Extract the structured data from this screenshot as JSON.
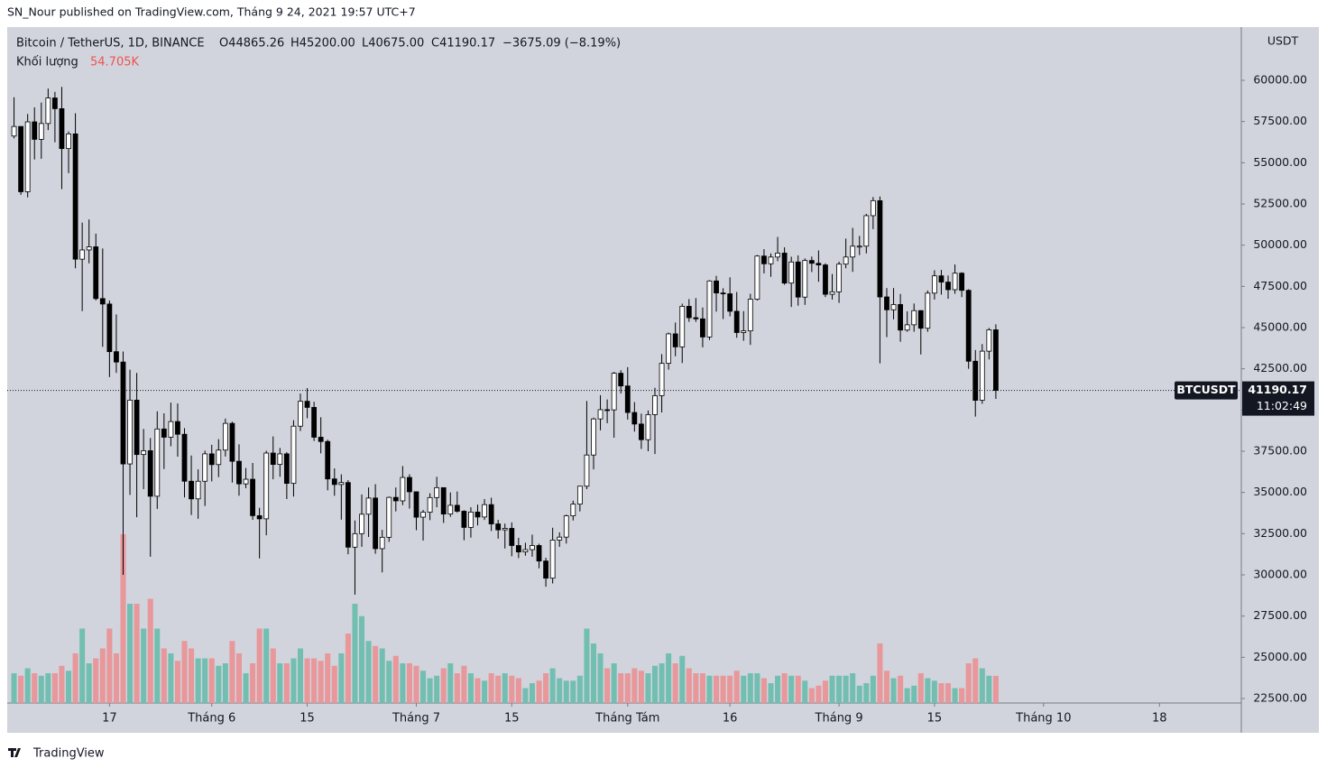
{
  "header": {
    "publisher": "SN_Nour published on TradingView.com, Tháng 9 24, 2021 19:57 UTC+7",
    "brand": "TradingView"
  },
  "chart_data": {
    "type": "candlestick",
    "symbol": "Bitcoin / TetherUS, 1D, BINANCE",
    "ohlc_text": [
      "O44865.26",
      "H45200.00",
      "L40675.00",
      "C41190.17",
      "−3675.09 (−8.19%)"
    ],
    "volume_title": "Khối lượng",
    "volume_text": "54.705K",
    "ticker": "BTCUSDT",
    "countdown": "11:02:49",
    "currency": "USDT",
    "up_color": "#ffffff",
    "down_color": "#000000",
    "volume_up_color": "#72bfb1",
    "volume_down_color": "#e8979a",
    "x": [
      "2021-05-03",
      "2021-05-04",
      "2021-05-05",
      "2021-05-06",
      "2021-05-07",
      "2021-05-08",
      "2021-05-09",
      "2021-05-10",
      "2021-05-11",
      "2021-05-12",
      "2021-05-13",
      "2021-05-14",
      "2021-05-15",
      "2021-05-16",
      "2021-05-17",
      "2021-05-18",
      "2021-05-19",
      "2021-05-20",
      "2021-05-21",
      "2021-05-22",
      "2021-05-23",
      "2021-05-24",
      "2021-05-25",
      "2021-05-26",
      "2021-05-27",
      "2021-05-28",
      "2021-05-29",
      "2021-05-30",
      "2021-05-31",
      "2021-06-01",
      "2021-06-02",
      "2021-06-03",
      "2021-06-04",
      "2021-06-05",
      "2021-06-06",
      "2021-06-07",
      "2021-06-08",
      "2021-06-09",
      "2021-06-10",
      "2021-06-11",
      "2021-06-12",
      "2021-06-13",
      "2021-06-14",
      "2021-06-15",
      "2021-06-16",
      "2021-06-17",
      "2021-06-18",
      "2021-06-19",
      "2021-06-20",
      "2021-06-21",
      "2021-06-22",
      "2021-06-23",
      "2021-06-24",
      "2021-06-25",
      "2021-06-26",
      "2021-06-27",
      "2021-06-28",
      "2021-06-29",
      "2021-06-30",
      "2021-07-01",
      "2021-07-02",
      "2021-07-03",
      "2021-07-04",
      "2021-07-05",
      "2021-07-06",
      "2021-07-07",
      "2021-07-08",
      "2021-07-09",
      "2021-07-10",
      "2021-07-11",
      "2021-07-12",
      "2021-07-13",
      "2021-07-14",
      "2021-07-15",
      "2021-07-16",
      "2021-07-17",
      "2021-07-18",
      "2021-07-19",
      "2021-07-20",
      "2021-07-21",
      "2021-07-22",
      "2021-07-23",
      "2021-07-24",
      "2021-07-25",
      "2021-07-26",
      "2021-07-27",
      "2021-07-28",
      "2021-07-29",
      "2021-07-30",
      "2021-07-31",
      "2021-08-01",
      "2021-08-02",
      "2021-08-03",
      "2021-08-04",
      "2021-08-05",
      "2021-08-06",
      "2021-08-07",
      "2021-08-08",
      "2021-08-09",
      "2021-08-10",
      "2021-08-11",
      "2021-08-12",
      "2021-08-13",
      "2021-08-14",
      "2021-08-15",
      "2021-08-16",
      "2021-08-17",
      "2021-08-18",
      "2021-08-19",
      "2021-08-20",
      "2021-08-21",
      "2021-08-22",
      "2021-08-23",
      "2021-08-24",
      "2021-08-25",
      "2021-08-26",
      "2021-08-27",
      "2021-08-28",
      "2021-08-29",
      "2021-08-30",
      "2021-08-31",
      "2021-09-01",
      "2021-09-02",
      "2021-09-03",
      "2021-09-04",
      "2021-09-05",
      "2021-09-06",
      "2021-09-07",
      "2021-09-08",
      "2021-09-09",
      "2021-09-10",
      "2021-09-11",
      "2021-09-12",
      "2021-09-13",
      "2021-09-14",
      "2021-09-15",
      "2021-09-16",
      "2021-09-17",
      "2021-09-18",
      "2021-09-19",
      "2021-09-20",
      "2021-09-21",
      "2021-09-22",
      "2021-09-23",
      "2021-09-24"
    ],
    "open": [
      56620,
      57200,
      53240,
      57480,
      56420,
      57380,
      58930,
      58280,
      55860,
      56750,
      49150,
      49710,
      49900,
      46760,
      46430,
      43540,
      42910,
      36730,
      40600,
      37300,
      37530,
      34770,
      38850,
      38350,
      39300,
      38530,
      35680,
      34610,
      35680,
      37340,
      36690,
      37570,
      39190,
      36890,
      35520,
      35800,
      33590,
      33400,
      37390,
      36700,
      37340,
      35550,
      39020,
      40530,
      40160,
      38350,
      38090,
      35820,
      35480,
      35600,
      31680,
      32500,
      33680,
      34660,
      31590,
      32280,
      34700,
      34490,
      35910,
      35040,
      33500,
      33800,
      34690,
      35290,
      33690,
      34220,
      33860,
      32880,
      33810,
      33510,
      34260,
      33090,
      32730,
      32820,
      31780,
      31390,
      31530,
      31780,
      30840,
      29800,
      32110,
      32290,
      33580,
      34290,
      35380,
      37270,
      39460,
      40020,
      40010,
      42230,
      41460,
      39850,
      39150,
      38200,
      39720,
      40870,
      42830,
      44620,
      43830,
      46290,
      45600,
      45530,
      44430,
      47830,
      47100,
      47050,
      45990,
      44700,
      44800,
      46720,
      49340,
      48870,
      49280,
      49520,
      47700,
      48980,
      46850,
      49070,
      48900,
      48800,
      47020,
      47170,
      48850,
      49280,
      49940,
      49940,
      51790,
      52700,
      46860,
      46080,
      46400,
      44850,
      45170,
      46030,
      44960,
      47090,
      48140,
      47760,
      47300,
      48300,
      47260,
      42960,
      40590,
      43570,
      44865.26
    ],
    "high": [
      58970,
      57200,
      57960,
      58360,
      58650,
      59500,
      59300,
      59600,
      56900,
      58000,
      51370,
      51560,
      50700,
      49800,
      46640,
      45800,
      43550,
      42450,
      42250,
      38850,
      38300,
      39920,
      39800,
      40450,
      40400,
      38900,
      37240,
      36400,
      37530,
      37890,
      38230,
      39480,
      39290,
      37920,
      36480,
      36790,
      34070,
      37530,
      38400,
      37700,
      37440,
      39380,
      41000,
      41330,
      40500,
      39560,
      38200,
      36460,
      36100,
      35750,
      33300,
      34880,
      35300,
      35500,
      32730,
      34750,
      35300,
      36600,
      36100,
      35040,
      33940,
      34950,
      35950,
      35290,
      35000,
      35060,
      33920,
      34100,
      34260,
      34600,
      34680,
      33340,
      33110,
      33180,
      32250,
      31950,
      32440,
      31890,
      31040,
      32860,
      32580,
      33650,
      34500,
      35400,
      40550,
      39540,
      40900,
      40640,
      42310,
      42420,
      42600,
      40480,
      39780,
      39970,
      41350,
      43390,
      44700,
      45310,
      46450,
      46730,
      46790,
      46220,
      47880,
      48140,
      47390,
      48050,
      47160,
      46000,
      47050,
      49400,
      49760,
      49500,
      50500,
      49870,
      49300,
      49380,
      49200,
      49310,
      49680,
      48900,
      48250,
      49000,
      50400,
      51050,
      50560,
      51900,
      52920,
      52950,
      47400,
      47400,
      47040,
      45990,
      46460,
      46050,
      47250,
      48480,
      48500,
      48160,
      48830,
      48360,
      47330,
      43640,
      44000,
      44980,
      45200
    ],
    "low": [
      56480,
      53050,
      52900,
      55200,
      55240,
      56980,
      56240,
      53400,
      54370,
      48600,
      46000,
      48900,
      46650,
      43830,
      42000,
      42250,
      30000,
      34850,
      33500,
      35200,
      31100,
      34000,
      36420,
      37800,
      37170,
      34700,
      33630,
      33400,
      34180,
      35670,
      35930,
      37180,
      35600,
      34800,
      35260,
      33340,
      31000,
      32400,
      35800,
      35950,
      34600,
      34750,
      38730,
      39500,
      38120,
      37370,
      35130,
      34800,
      33350,
      31250,
      28800,
      31700,
      32300,
      31280,
      30150,
      32000,
      33850,
      34230,
      34020,
      32710,
      32080,
      33320,
      34100,
      33150,
      33520,
      33770,
      32100,
      32260,
      33000,
      33330,
      32660,
      32200,
      31600,
      31130,
      31020,
      31160,
      31100,
      30400,
      29280,
      29480,
      31700,
      31900,
      33300,
      33850,
      35200,
      36400,
      38770,
      39200,
      38320,
      41000,
      39420,
      38690,
      37640,
      37500,
      37330,
      39850,
      42450,
      43260,
      42850,
      45350,
      45350,
      43800,
      44250,
      45970,
      45520,
      45680,
      44380,
      44200,
      43950,
      46640,
      48290,
      48080,
      49030,
      47600,
      46250,
      46330,
      46380,
      48370,
      47780,
      46850,
      46700,
      46500,
      48600,
      48380,
      49400,
      49500,
      50970,
      42830,
      44420,
      45500,
      44140,
      44750,
      44750,
      43370,
      44750,
      46700,
      47000,
      46750,
      47050,
      46850,
      42500,
      39600,
      40380,
      43070,
      40675
    ],
    "close": [
      57200,
      53240,
      57480,
      56420,
      57380,
      58930,
      58280,
      55860,
      56750,
      49150,
      49710,
      49900,
      46760,
      46430,
      43540,
      42910,
      36730,
      40600,
      37300,
      37530,
      34770,
      38850,
      38350,
      39300,
      38530,
      35680,
      34610,
      35680,
      37340,
      36690,
      37570,
      39190,
      36890,
      35520,
      35800,
      33590,
      33400,
      37390,
      36700,
      37340,
      35550,
      39020,
      40530,
      40160,
      38350,
      38090,
      35820,
      35480,
      35600,
      31680,
      32500,
      33680,
      34660,
      31590,
      32280,
      34700,
      34490,
      35910,
      35040,
      33500,
      33800,
      34690,
      35290,
      33690,
      34220,
      33860,
      32880,
      33810,
      33510,
      34260,
      33090,
      32730,
      32820,
      31780,
      31390,
      31530,
      31780,
      30840,
      29800,
      32110,
      32290,
      33580,
      34290,
      35380,
      37270,
      39460,
      40020,
      40010,
      42230,
      41460,
      39850,
      39150,
      38200,
      39720,
      40870,
      42830,
      44620,
      43830,
      46290,
      45600,
      45530,
      44430,
      47830,
      47100,
      47050,
      45990,
      44700,
      44800,
      46720,
      49340,
      48870,
      49280,
      49520,
      47700,
      48980,
      46850,
      49070,
      48900,
      48800,
      47020,
      47170,
      48850,
      49280,
      49940,
      49940,
      51790,
      52700,
      46860,
      46080,
      46400,
      44850,
      45170,
      46030,
      44960,
      47090,
      48140,
      47760,
      47300,
      48300,
      47260,
      42960,
      40590,
      43570,
      44865.26,
      41190.17
    ],
    "volume": [
      60,
      55,
      70,
      60,
      55,
      60,
      60,
      75,
      65,
      100,
      150,
      80,
      90,
      110,
      150,
      100,
      340,
      200,
      200,
      150,
      210,
      150,
      110,
      100,
      85,
      125,
      110,
      90,
      90,
      90,
      75,
      80,
      125,
      100,
      60,
      80,
      150,
      150,
      110,
      80,
      80,
      90,
      110,
      90,
      90,
      85,
      100,
      75,
      100,
      140,
      200,
      175,
      125,
      115,
      110,
      85,
      95,
      80,
      80,
      75,
      65,
      50,
      55,
      70,
      80,
      60,
      75,
      60,
      50,
      45,
      60,
      55,
      60,
      55,
      50,
      30,
      40,
      45,
      60,
      70,
      50,
      45,
      45,
      55,
      150,
      120,
      100,
      70,
      80,
      60,
      60,
      70,
      65,
      60,
      75,
      80,
      100,
      80,
      95,
      70,
      60,
      60,
      55,
      55,
      55,
      55,
      65,
      55,
      60,
      60,
      50,
      40,
      55,
      60,
      55,
      55,
      45,
      30,
      35,
      45,
      55,
      55,
      55,
      60,
      35,
      40,
      55,
      120,
      65,
      50,
      55,
      30,
      35,
      60,
      50,
      45,
      40,
      40,
      30,
      30,
      80,
      90,
      70,
      55,
      54.705
    ],
    "xlim": [
      "2021-05-02",
      "2021-10-30"
    ],
    "xticks": [
      {
        "value": "2021-05-17",
        "label": "17"
      },
      {
        "value": "2021-06-01",
        "label": "Tháng 6"
      },
      {
        "value": "2021-06-15",
        "label": "15"
      },
      {
        "value": "2021-07-01",
        "label": "Tháng 7"
      },
      {
        "value": "2021-07-15",
        "label": "15"
      },
      {
        "value": "2021-08-01",
        "label": "Tháng Tám"
      },
      {
        "value": "2021-08-16",
        "label": "16"
      },
      {
        "value": "2021-09-01",
        "label": "Tháng 9"
      },
      {
        "value": "2021-09-15",
        "label": "15"
      },
      {
        "value": "2021-10-01",
        "label": "Tháng 10"
      },
      {
        "value": "2021-10-18",
        "label": "18"
      }
    ],
    "ylim": [
      22226,
      63230
    ],
    "yticks": [
      {
        "value": 22500,
        "label": "22500.00"
      },
      {
        "value": 25000,
        "label": "25000.00"
      },
      {
        "value": 27500,
        "label": "27500.00"
      },
      {
        "value": 30000,
        "label": "30000.00"
      },
      {
        "value": 32500,
        "label": "32500.00"
      },
      {
        "value": 35000,
        "label": "35000.00"
      },
      {
        "value": 37500,
        "label": "37500.00"
      },
      {
        "value": 40000,
        "label": "40000.00"
      },
      {
        "value": 42500,
        "label": "42500.00"
      },
      {
        "value": 45000,
        "label": "45000.00"
      },
      {
        "value": 47500,
        "label": "47500.00"
      },
      {
        "value": 50000,
        "label": "50000.00"
      },
      {
        "value": 52500,
        "label": "52500.00"
      },
      {
        "value": 55000,
        "label": "55000.00"
      },
      {
        "value": 57500,
        "label": "57500.00"
      },
      {
        "value": 60000,
        "label": "60000.00"
      }
    ]
  }
}
